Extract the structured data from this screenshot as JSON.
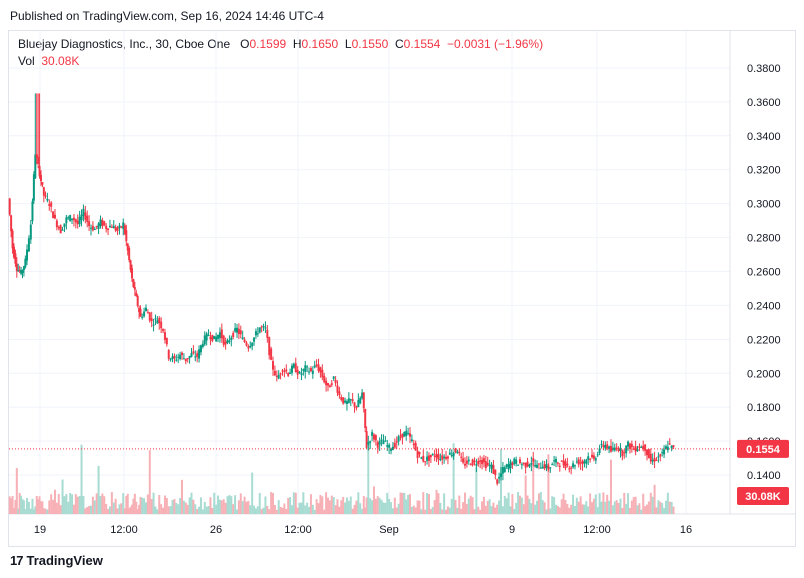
{
  "header": {
    "published": "Published on TradingView.com, Sep 16, 2024 14:46 UTC-4"
  },
  "legend": {
    "symbol": "Bluejay Diagnostics, Inc., 30, Cboe One",
    "o_label": "O",
    "o_value": "0.1599",
    "h_label": "H",
    "h_value": "0.1650",
    "l_label": "L",
    "l_value": "0.1550",
    "c_label": "C",
    "c_value": "0.1554",
    "change": "−0.0031 (−1.96%)",
    "vol_label": "Vol",
    "vol_value": "30.08K"
  },
  "footer": {
    "brand": "TradingView",
    "logo_mark": "17"
  },
  "colors": {
    "up": "#089981",
    "down": "#f23645",
    "up_volume": "#a8dcd2",
    "down_volume": "#f7b0b5",
    "grid": "#f0f3fa",
    "axis_text": "#131722",
    "last_price_line": "#f23645"
  },
  "chart_data": {
    "type": "candlestick",
    "interval": "30 min",
    "y_axis": {
      "ticks": [
        "0.1400",
        "0.1600",
        "0.1800",
        "0.2000",
        "0.2200",
        "0.2400",
        "0.2600",
        "0.2800",
        "0.3000",
        "0.3200",
        "0.3400",
        "0.3600",
        "0.3800"
      ],
      "range": [
        0.13,
        0.39
      ],
      "position": "right"
    },
    "x_axis": {
      "ticks": [
        "19",
        "12:00",
        "26",
        "12:00",
        "Sep",
        "9",
        "12:00",
        "16"
      ]
    },
    "last_price": {
      "value": 0.1554,
      "label": "0.1554"
    },
    "last_volume": {
      "label": "30.08K"
    },
    "close_path": [
      [
        0.0,
        0.303
      ],
      [
        0.006,
        0.274
      ],
      [
        0.012,
        0.262
      ],
      [
        0.018,
        0.259
      ],
      [
        0.024,
        0.266
      ],
      [
        0.032,
        0.288
      ],
      [
        0.038,
        0.33
      ],
      [
        0.044,
        0.318
      ],
      [
        0.05,
        0.305
      ],
      [
        0.058,
        0.3
      ],
      [
        0.066,
        0.29
      ],
      [
        0.074,
        0.284
      ],
      [
        0.082,
        0.291
      ],
      [
        0.09,
        0.292
      ],
      [
        0.098,
        0.288
      ],
      [
        0.106,
        0.295
      ],
      [
        0.114,
        0.287
      ],
      [
        0.122,
        0.285
      ],
      [
        0.13,
        0.289
      ],
      [
        0.138,
        0.286
      ],
      [
        0.146,
        0.287
      ],
      [
        0.154,
        0.284
      ],
      [
        0.162,
        0.288
      ],
      [
        0.168,
        0.272
      ],
      [
        0.174,
        0.255
      ],
      [
        0.18,
        0.244
      ],
      [
        0.186,
        0.233
      ],
      [
        0.194,
        0.238
      ],
      [
        0.202,
        0.23
      ],
      [
        0.21,
        0.232
      ],
      [
        0.218,
        0.226
      ],
      [
        0.226,
        0.21
      ],
      [
        0.234,
        0.208
      ],
      [
        0.242,
        0.211
      ],
      [
        0.25,
        0.208
      ],
      [
        0.258,
        0.211
      ],
      [
        0.266,
        0.21
      ],
      [
        0.274,
        0.219
      ],
      [
        0.282,
        0.223
      ],
      [
        0.29,
        0.22
      ],
      [
        0.298,
        0.224
      ],
      [
        0.306,
        0.216
      ],
      [
        0.314,
        0.222
      ],
      [
        0.322,
        0.226
      ],
      [
        0.33,
        0.22
      ],
      [
        0.338,
        0.216
      ],
      [
        0.346,
        0.221
      ],
      [
        0.354,
        0.227
      ],
      [
        0.362,
        0.226
      ],
      [
        0.37,
        0.206
      ],
      [
        0.378,
        0.197
      ],
      [
        0.386,
        0.203
      ],
      [
        0.394,
        0.2
      ],
      [
        0.402,
        0.204
      ],
      [
        0.41,
        0.199
      ],
      [
        0.418,
        0.203
      ],
      [
        0.426,
        0.201
      ],
      [
        0.434,
        0.205
      ],
      [
        0.442,
        0.198
      ],
      [
        0.45,
        0.191
      ],
      [
        0.458,
        0.197
      ],
      [
        0.466,
        0.187
      ],
      [
        0.474,
        0.182
      ],
      [
        0.482,
        0.184
      ],
      [
        0.49,
        0.18
      ],
      [
        0.498,
        0.188
      ],
      [
        0.504,
        0.157
      ],
      [
        0.512,
        0.164
      ],
      [
        0.52,
        0.158
      ],
      [
        0.528,
        0.16
      ],
      [
        0.536,
        0.156
      ],
      [
        0.544,
        0.158
      ],
      [
        0.552,
        0.163
      ],
      [
        0.56,
        0.165
      ],
      [
        0.568,
        0.16
      ],
      [
        0.576,
        0.152
      ],
      [
        0.584,
        0.149
      ],
      [
        0.592,
        0.15
      ],
      [
        0.6,
        0.152
      ],
      [
        0.608,
        0.15
      ],
      [
        0.616,
        0.151
      ],
      [
        0.624,
        0.153
      ],
      [
        0.632,
        0.155
      ],
      [
        0.64,
        0.146
      ],
      [
        0.648,
        0.148
      ],
      [
        0.656,
        0.147
      ],
      [
        0.664,
        0.149
      ],
      [
        0.672,
        0.146
      ],
      [
        0.68,
        0.145
      ],
      [
        0.688,
        0.136
      ],
      [
        0.696,
        0.143
      ],
      [
        0.704,
        0.146
      ],
      [
        0.712,
        0.148
      ],
      [
        0.72,
        0.147
      ],
      [
        0.728,
        0.146
      ],
      [
        0.736,
        0.148
      ],
      [
        0.744,
        0.145
      ],
      [
        0.752,
        0.146
      ],
      [
        0.76,
        0.144
      ],
      [
        0.768,
        0.148
      ],
      [
        0.776,
        0.147
      ],
      [
        0.784,
        0.146
      ],
      [
        0.792,
        0.145
      ],
      [
        0.8,
        0.148
      ],
      [
        0.808,
        0.147
      ],
      [
        0.816,
        0.151
      ],
      [
        0.824,
        0.149
      ],
      [
        0.832,
        0.156
      ],
      [
        0.84,
        0.158
      ],
      [
        0.848,
        0.154
      ],
      [
        0.856,
        0.157
      ],
      [
        0.864,
        0.153
      ],
      [
        0.872,
        0.158
      ],
      [
        0.88,
        0.155
      ],
      [
        0.888,
        0.157
      ],
      [
        0.896,
        0.156
      ],
      [
        0.904,
        0.148
      ],
      [
        0.912,
        0.15
      ],
      [
        0.92,
        0.152
      ],
      [
        0.928,
        0.158
      ],
      [
        0.936,
        0.1554
      ]
    ]
  }
}
